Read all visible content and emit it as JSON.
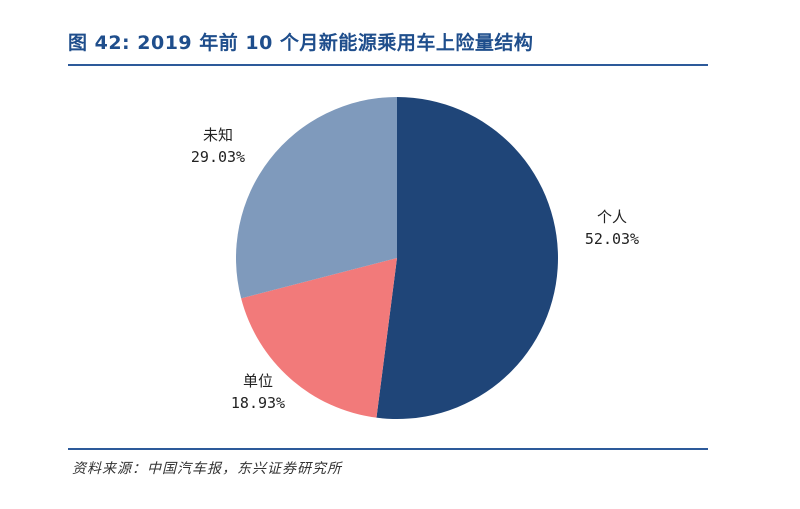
{
  "figure": {
    "title": "图 42: 2019 年前 10 个月新能源乘用车上险量结构",
    "source": "资料来源：中国汽车报，东兴证券研究所"
  },
  "chart_data": {
    "type": "pie",
    "title": "图 42: 2019 年前 10 个月新能源乘用车上险量结构",
    "categories": [
      "个人",
      "单位",
      "未知"
    ],
    "values": [
      52.03,
      18.93,
      29.03
    ],
    "value_labels": [
      "52.03%",
      "18.93%",
      "29.03%"
    ],
    "colors": [
      "#1f4578",
      "#f27a7a",
      "#7f9abc"
    ],
    "start": "12 o'clock, clockwise"
  }
}
